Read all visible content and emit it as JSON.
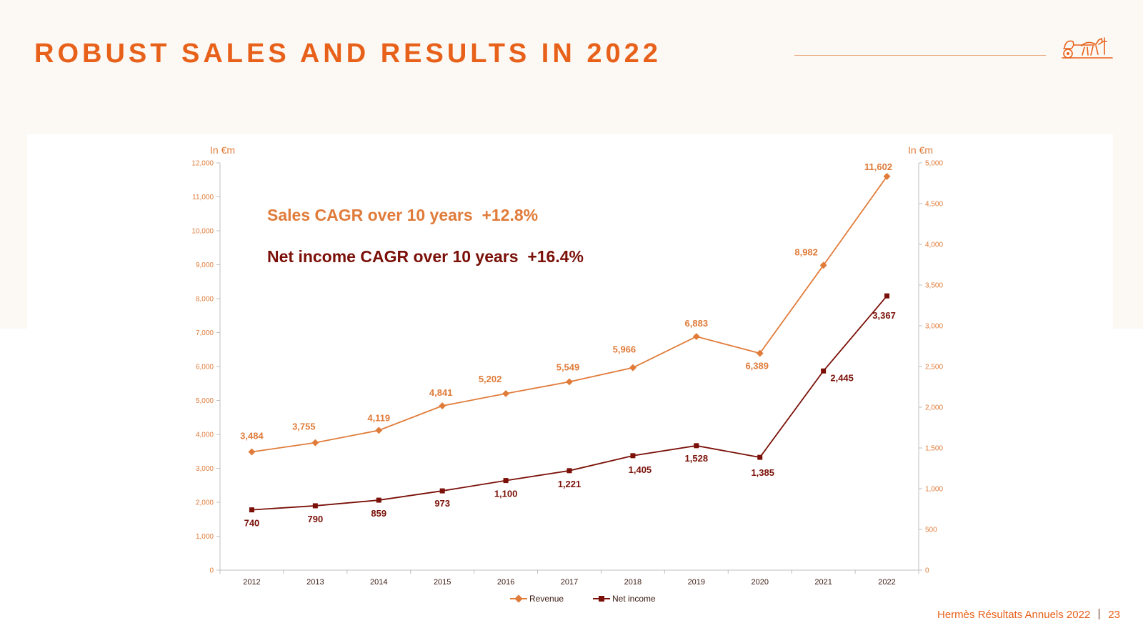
{
  "slide": {
    "title": "ROBUST SALES AND RESULTS IN 2022",
    "footer_text": "Hermès Résultats Annuels 2022",
    "page_number": "23"
  },
  "colors": {
    "accent": "#e8611a",
    "revenue": "#e07b39",
    "net_income": "#7a1008",
    "axis": "#bfbfbf",
    "background": "#fcf9f5"
  },
  "icons": {
    "logo": "hermes-carriage-logo"
  },
  "chart_data": {
    "type": "line",
    "categories": [
      "2012",
      "2013",
      "2014",
      "2015",
      "2016",
      "2017",
      "2018",
      "2019",
      "2020",
      "2021",
      "2022"
    ],
    "y_label_left": "In €m",
    "y_label_right": "In €m",
    "ylim_left": [
      0,
      12000
    ],
    "yticks_left": [
      0,
      1000,
      2000,
      3000,
      4000,
      5000,
      6000,
      7000,
      8000,
      9000,
      10000,
      11000,
      12000
    ],
    "ylim_right": [
      0,
      5000
    ],
    "yticks_right": [
      0,
      500,
      1000,
      1500,
      2000,
      2500,
      3000,
      3500,
      4000,
      4500,
      5000
    ],
    "series": [
      {
        "name": "Revenue",
        "axis": "left",
        "marker": "diamond",
        "values": [
          3484,
          3755,
          4119,
          4841,
          5202,
          5549,
          5966,
          6883,
          6389,
          8982,
          11602
        ],
        "labels": [
          "3,484",
          "3,755",
          "4,119",
          "4,841",
          "5,202",
          "5,549",
          "5,966",
          "6,883",
          "6,389",
          "8,982",
          "11,602"
        ]
      },
      {
        "name": "Net income",
        "axis": "right",
        "marker": "square",
        "values": [
          740,
          790,
          859,
          973,
          1100,
          1221,
          1405,
          1528,
          1385,
          2445,
          3367
        ],
        "labels": [
          "740",
          "790",
          "859",
          "973",
          "1,100",
          "1,221",
          "1,405",
          "1,528",
          "1,385",
          "2,445",
          "3,367"
        ]
      }
    ],
    "annotations": [
      {
        "text": "Sales CAGR over 10 years  +12.8%",
        "series": "Revenue"
      },
      {
        "text": "Net income CAGR over 10 years  +16.4%",
        "series": "Net income"
      }
    ],
    "grid": false,
    "legend": "bottom-center"
  }
}
